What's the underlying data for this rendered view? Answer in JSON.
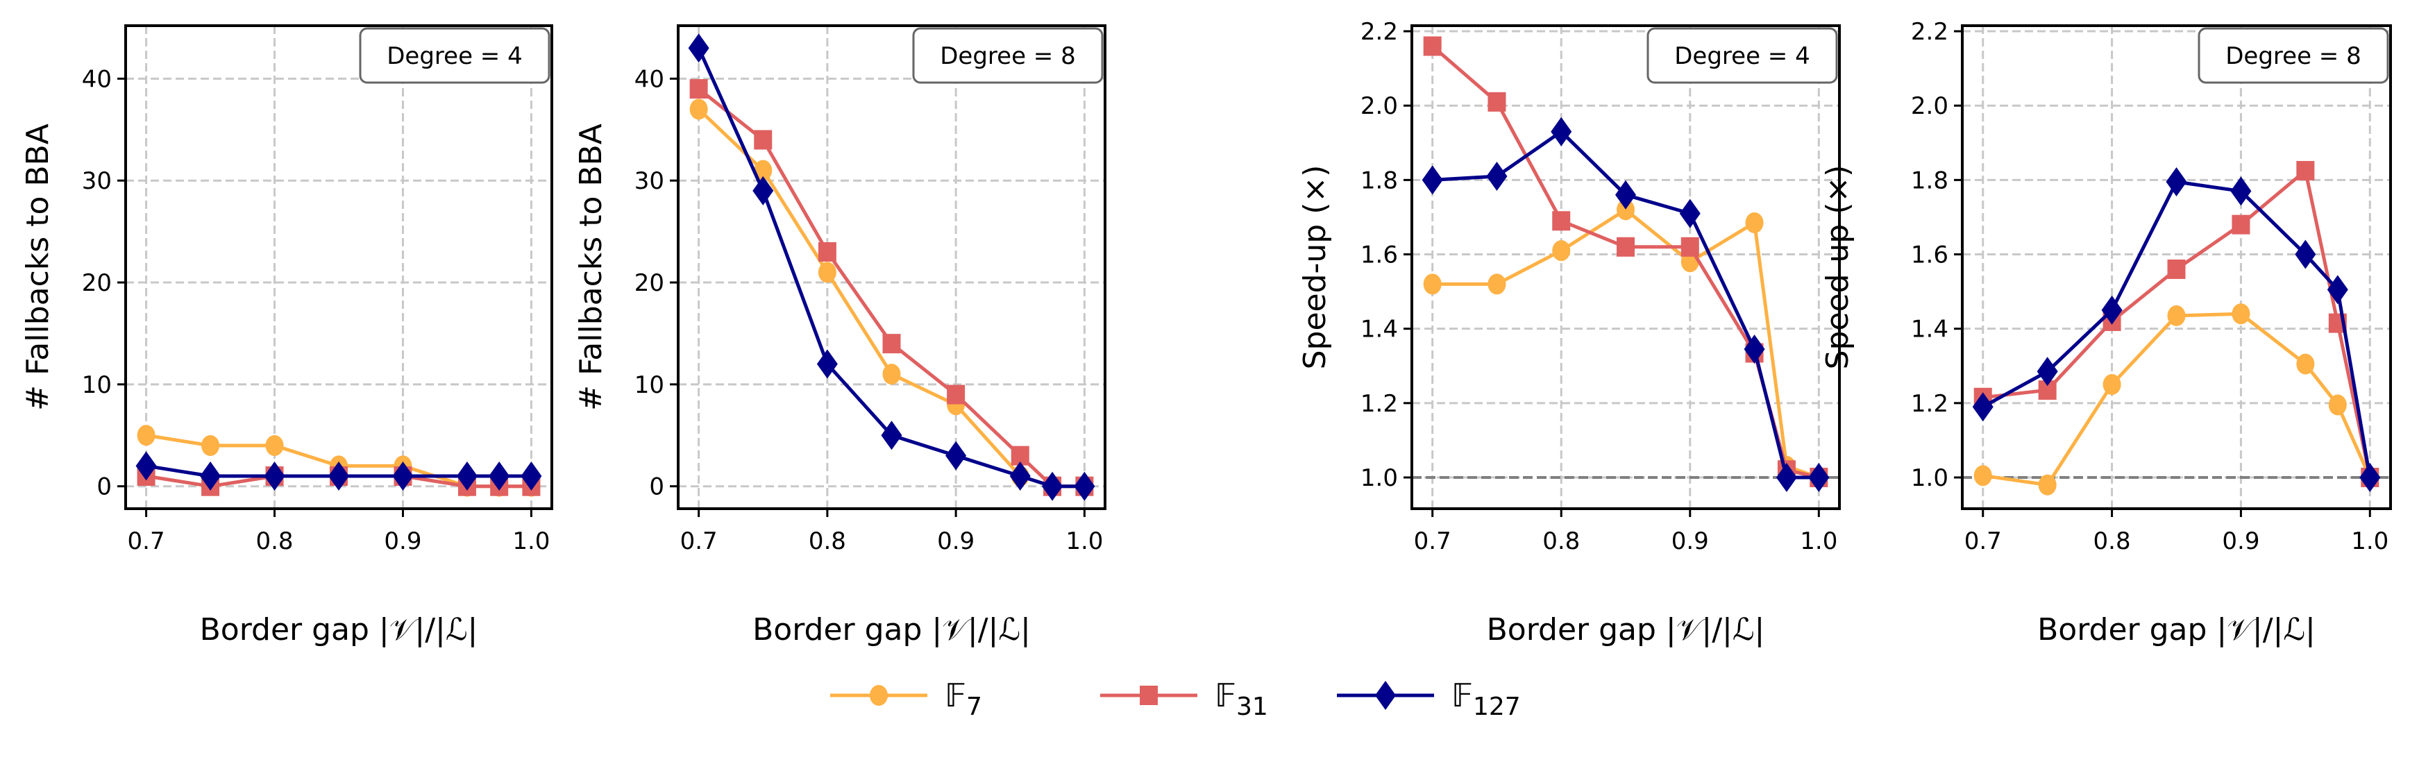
{
  "colors": {
    "F7": "#FEB144",
    "F31": "#E06060",
    "F127": "#00008B",
    "grid": "#c8c8c8",
    "reference_line": "#808080"
  },
  "legend": {
    "placement": "bottom-center",
    "items": [
      {
        "key": "F7",
        "label_base": "𝔽",
        "label_sub": "7",
        "marker": "circle"
      },
      {
        "key": "F31",
        "label_base": "𝔽",
        "label_sub": "31",
        "marker": "square"
      },
      {
        "key": "F127",
        "label_base": "𝔽",
        "label_sub": "127",
        "marker": "diamond"
      }
    ]
  },
  "chart_data": [
    {
      "type": "line",
      "annotation": "Degree = 4",
      "xlabel": "Border gap  |𝒱|/|ℒ|",
      "ylabel": "# Fallbacks to BBA",
      "x": [
        0.7,
        0.75,
        0.8,
        0.85,
        0.9,
        0.95,
        0.975,
        1.0
      ],
      "xticks": [
        "0.7",
        "0.8",
        "0.9",
        "1.0"
      ],
      "yticks": [
        "0",
        "10",
        "20",
        "30",
        "40"
      ],
      "xlim": [
        0.684,
        1.016
      ],
      "ylim": [
        -2.2,
        45.2
      ],
      "grid": true,
      "series": [
        {
          "key": "F7",
          "values": [
            5,
            4,
            4,
            2,
            2,
            0,
            0,
            0
          ]
        },
        {
          "key": "F31",
          "values": [
            1,
            0,
            1,
            1,
            1,
            0,
            0,
            0
          ]
        },
        {
          "key": "F127",
          "values": [
            2,
            1,
            1,
            1,
            1,
            1,
            1,
            1
          ]
        }
      ]
    },
    {
      "type": "line",
      "annotation": "Degree = 8",
      "xlabel": "Border gap  |𝒱|/|ℒ|",
      "ylabel": "# Fallbacks to BBA",
      "x": [
        0.7,
        0.75,
        0.8,
        0.85,
        0.9,
        0.95,
        0.975,
        1.0
      ],
      "xticks": [
        "0.7",
        "0.8",
        "0.9",
        "1.0"
      ],
      "yticks": [
        "0",
        "10",
        "20",
        "30",
        "40"
      ],
      "xlim": [
        0.684,
        1.016
      ],
      "ylim": [
        -2.2,
        45.2
      ],
      "grid": true,
      "series": [
        {
          "key": "F7",
          "values": [
            37,
            31,
            21,
            11,
            8,
            1,
            0,
            0
          ]
        },
        {
          "key": "F31",
          "values": [
            39,
            34,
            23,
            14,
            9,
            3,
            0,
            0
          ]
        },
        {
          "key": "F127",
          "values": [
            43,
            29,
            12,
            5,
            3,
            1,
            0,
            0
          ]
        }
      ]
    },
    {
      "type": "line",
      "annotation": "Degree = 4",
      "xlabel": "Border gap  |𝒱|/|ℒ|",
      "ylabel": "Speed-up (×)",
      "x": [
        0.7,
        0.75,
        0.8,
        0.85,
        0.9,
        0.95,
        0.975,
        1.0
      ],
      "xticks": [
        "0.7",
        "0.8",
        "0.9",
        "1.0"
      ],
      "yticks": [
        "1.0",
        "1.2",
        "1.4",
        "1.6",
        "1.8",
        "2.0",
        "2.2"
      ],
      "xlim": [
        0.684,
        1.016
      ],
      "ylim": [
        0.916,
        2.215
      ],
      "grid": true,
      "reference_line": 1.0,
      "series": [
        {
          "key": "F7",
          "values": [
            1.52,
            1.52,
            1.61,
            1.72,
            1.58,
            1.685,
            1.03,
            1.0
          ]
        },
        {
          "key": "F31",
          "values": [
            2.16,
            2.01,
            1.69,
            1.62,
            1.62,
            1.335,
            1.02,
            1.0
          ]
        },
        {
          "key": "F127",
          "values": [
            1.8,
            1.81,
            1.93,
            1.76,
            1.71,
            1.345,
            1.0,
            1.0
          ]
        }
      ]
    },
    {
      "type": "line",
      "annotation": "Degree = 8",
      "xlabel": "Border gap  |𝒱|/|ℒ|",
      "ylabel": "Speed-up (×)",
      "x": [
        0.7,
        0.75,
        0.8,
        0.85,
        0.9,
        0.95,
        0.975,
        1.0
      ],
      "xticks": [
        "0.7",
        "0.8",
        "0.9",
        "1.0"
      ],
      "yticks": [
        "1.0",
        "1.2",
        "1.4",
        "1.6",
        "1.8",
        "2.0",
        "2.2"
      ],
      "xlim": [
        0.684,
        1.016
      ],
      "ylim": [
        0.916,
        2.215
      ],
      "grid": true,
      "reference_line": 1.0,
      "series": [
        {
          "key": "F7",
          "values": [
            1.005,
            0.98,
            1.25,
            1.435,
            1.44,
            1.305,
            1.195,
            1.0
          ]
        },
        {
          "key": "F31",
          "values": [
            1.215,
            1.235,
            1.42,
            1.56,
            1.68,
            1.825,
            1.415,
            1.0
          ]
        },
        {
          "key": "F127",
          "values": [
            1.19,
            1.285,
            1.45,
            1.795,
            1.77,
            1.6,
            1.505,
            1.0
          ]
        }
      ]
    }
  ]
}
